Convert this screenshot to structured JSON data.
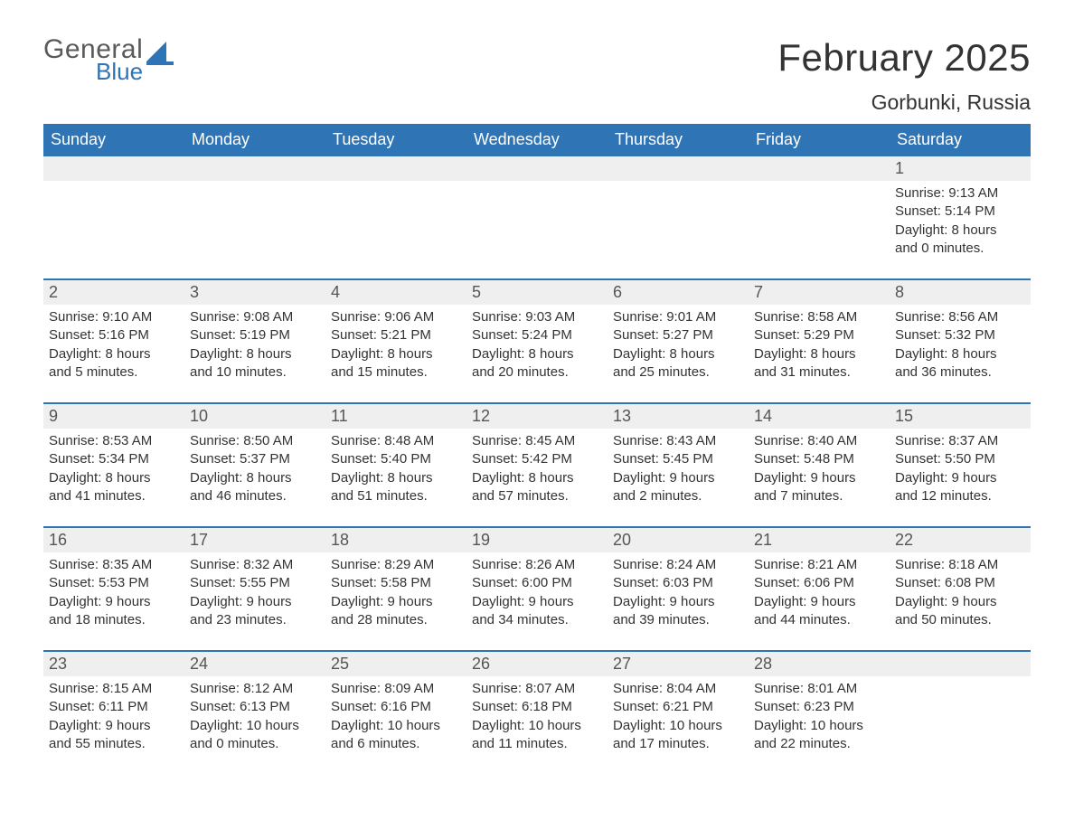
{
  "brand": {
    "line1": "General",
    "line2": "Blue",
    "logoColor": "#2f74b5"
  },
  "title": "February 2025",
  "location": "Gorbunki, Russia",
  "colors": {
    "headerBg": "#2f74b5",
    "headerText": "#ffffff",
    "bandBg": "#efefef",
    "ruleColor": "#2f74b5",
    "bodyText": "#333333",
    "dayNumText": "#555555",
    "pageBg": "#ffffff"
  },
  "fonts": {
    "title_pt": 42,
    "location_pt": 23,
    "dow_pt": 18,
    "daynum_pt": 18,
    "body_pt": 15
  },
  "daysOfWeek": [
    "Sunday",
    "Monday",
    "Tuesday",
    "Wednesday",
    "Thursday",
    "Friday",
    "Saturday"
  ],
  "weeks": [
    [
      null,
      null,
      null,
      null,
      null,
      null,
      {
        "n": "1",
        "sr": "Sunrise: 9:13 AM",
        "ss": "Sunset: 5:14 PM",
        "d1": "Daylight: 8 hours",
        "d2": "and 0 minutes."
      }
    ],
    [
      {
        "n": "2",
        "sr": "Sunrise: 9:10 AM",
        "ss": "Sunset: 5:16 PM",
        "d1": "Daylight: 8 hours",
        "d2": "and 5 minutes."
      },
      {
        "n": "3",
        "sr": "Sunrise: 9:08 AM",
        "ss": "Sunset: 5:19 PM",
        "d1": "Daylight: 8 hours",
        "d2": "and 10 minutes."
      },
      {
        "n": "4",
        "sr": "Sunrise: 9:06 AM",
        "ss": "Sunset: 5:21 PM",
        "d1": "Daylight: 8 hours",
        "d2": "and 15 minutes."
      },
      {
        "n": "5",
        "sr": "Sunrise: 9:03 AM",
        "ss": "Sunset: 5:24 PM",
        "d1": "Daylight: 8 hours",
        "d2": "and 20 minutes."
      },
      {
        "n": "6",
        "sr": "Sunrise: 9:01 AM",
        "ss": "Sunset: 5:27 PM",
        "d1": "Daylight: 8 hours",
        "d2": "and 25 minutes."
      },
      {
        "n": "7",
        "sr": "Sunrise: 8:58 AM",
        "ss": "Sunset: 5:29 PM",
        "d1": "Daylight: 8 hours",
        "d2": "and 31 minutes."
      },
      {
        "n": "8",
        "sr": "Sunrise: 8:56 AM",
        "ss": "Sunset: 5:32 PM",
        "d1": "Daylight: 8 hours",
        "d2": "and 36 minutes."
      }
    ],
    [
      {
        "n": "9",
        "sr": "Sunrise: 8:53 AM",
        "ss": "Sunset: 5:34 PM",
        "d1": "Daylight: 8 hours",
        "d2": "and 41 minutes."
      },
      {
        "n": "10",
        "sr": "Sunrise: 8:50 AM",
        "ss": "Sunset: 5:37 PM",
        "d1": "Daylight: 8 hours",
        "d2": "and 46 minutes."
      },
      {
        "n": "11",
        "sr": "Sunrise: 8:48 AM",
        "ss": "Sunset: 5:40 PM",
        "d1": "Daylight: 8 hours",
        "d2": "and 51 minutes."
      },
      {
        "n": "12",
        "sr": "Sunrise: 8:45 AM",
        "ss": "Sunset: 5:42 PM",
        "d1": "Daylight: 8 hours",
        "d2": "and 57 minutes."
      },
      {
        "n": "13",
        "sr": "Sunrise: 8:43 AM",
        "ss": "Sunset: 5:45 PM",
        "d1": "Daylight: 9 hours",
        "d2": "and 2 minutes."
      },
      {
        "n": "14",
        "sr": "Sunrise: 8:40 AM",
        "ss": "Sunset: 5:48 PM",
        "d1": "Daylight: 9 hours",
        "d2": "and 7 minutes."
      },
      {
        "n": "15",
        "sr": "Sunrise: 8:37 AM",
        "ss": "Sunset: 5:50 PM",
        "d1": "Daylight: 9 hours",
        "d2": "and 12 minutes."
      }
    ],
    [
      {
        "n": "16",
        "sr": "Sunrise: 8:35 AM",
        "ss": "Sunset: 5:53 PM",
        "d1": "Daylight: 9 hours",
        "d2": "and 18 minutes."
      },
      {
        "n": "17",
        "sr": "Sunrise: 8:32 AM",
        "ss": "Sunset: 5:55 PM",
        "d1": "Daylight: 9 hours",
        "d2": "and 23 minutes."
      },
      {
        "n": "18",
        "sr": "Sunrise: 8:29 AM",
        "ss": "Sunset: 5:58 PM",
        "d1": "Daylight: 9 hours",
        "d2": "and 28 minutes."
      },
      {
        "n": "19",
        "sr": "Sunrise: 8:26 AM",
        "ss": "Sunset: 6:00 PM",
        "d1": "Daylight: 9 hours",
        "d2": "and 34 minutes."
      },
      {
        "n": "20",
        "sr": "Sunrise: 8:24 AM",
        "ss": "Sunset: 6:03 PM",
        "d1": "Daylight: 9 hours",
        "d2": "and 39 minutes."
      },
      {
        "n": "21",
        "sr": "Sunrise: 8:21 AM",
        "ss": "Sunset: 6:06 PM",
        "d1": "Daylight: 9 hours",
        "d2": "and 44 minutes."
      },
      {
        "n": "22",
        "sr": "Sunrise: 8:18 AM",
        "ss": "Sunset: 6:08 PM",
        "d1": "Daylight: 9 hours",
        "d2": "and 50 minutes."
      }
    ],
    [
      {
        "n": "23",
        "sr": "Sunrise: 8:15 AM",
        "ss": "Sunset: 6:11 PM",
        "d1": "Daylight: 9 hours",
        "d2": "and 55 minutes."
      },
      {
        "n": "24",
        "sr": "Sunrise: 8:12 AM",
        "ss": "Sunset: 6:13 PM",
        "d1": "Daylight: 10 hours",
        "d2": "and 0 minutes."
      },
      {
        "n": "25",
        "sr": "Sunrise: 8:09 AM",
        "ss": "Sunset: 6:16 PM",
        "d1": "Daylight: 10 hours",
        "d2": "and 6 minutes."
      },
      {
        "n": "26",
        "sr": "Sunrise: 8:07 AM",
        "ss": "Sunset: 6:18 PM",
        "d1": "Daylight: 10 hours",
        "d2": "and 11 minutes."
      },
      {
        "n": "27",
        "sr": "Sunrise: 8:04 AM",
        "ss": "Sunset: 6:21 PM",
        "d1": "Daylight: 10 hours",
        "d2": "and 17 minutes."
      },
      {
        "n": "28",
        "sr": "Sunrise: 8:01 AM",
        "ss": "Sunset: 6:23 PM",
        "d1": "Daylight: 10 hours",
        "d2": "and 22 minutes."
      },
      null
    ]
  ]
}
